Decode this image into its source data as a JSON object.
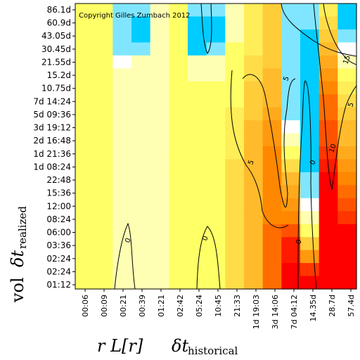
{
  "chart_data": {
    "type": "heatmap",
    "annotation": "Copyright Gilles Zumbach 2012",
    "x_tick_labels": [
      "00:06",
      "00:09",
      "00:21",
      "00:39",
      "01:21",
      "02:42",
      "05:24",
      "10:45",
      "21:33",
      "1d 19:03",
      "3d 14:06",
      "7d 04:12",
      "14.35d",
      "28.7d",
      "57.4d"
    ],
    "y_tick_labels": [
      "86.1d",
      "60.9d",
      "43.05d",
      "30.45d",
      "21.55d",
      "15.2d",
      "10.75d",
      "7d 14:24",
      "5d 09:36",
      "3d 19:12",
      "2d 16:48",
      "1d 21:36",
      "1d 08:24",
      "22:48",
      "15:36",
      "12:00",
      "08:24",
      "06:00",
      "03:36",
      "02:24",
      "02:24",
      "01:12"
    ],
    "x_label": {
      "main": "r L[r]",
      "symbol": "δt",
      "subscript": "historical"
    },
    "y_label": {
      "main": "vol",
      "symbol": "δt",
      "subscript": "realized"
    },
    "contour_labels": [
      "0",
      "0",
      "0",
      "0",
      "5",
      "5",
      "10",
      "15",
      "5"
    ],
    "colors": {
      "negative": "#00ccff",
      "zero": "#ffffff",
      "low": "#ffff66",
      "mid": "#ff8800",
      "high": "#ff0000"
    },
    "values": [
      [
        2,
        2,
        -1,
        -1,
        1,
        2,
        -1,
        -1,
        1,
        3,
        5,
        -1,
        -1,
        3,
        -2
      ],
      [
        2,
        2,
        -1,
        -2,
        1,
        2,
        -2,
        -2,
        1,
        3,
        5,
        -1,
        -1,
        4,
        -2
      ],
      [
        2,
        2,
        -1,
        -2,
        1,
        2,
        -2,
        -2,
        1,
        3,
        5,
        -1,
        -2,
        5,
        -1
      ],
      [
        2,
        2,
        -1,
        -1,
        1,
        2,
        -2,
        -1,
        2,
        3,
        5,
        -1,
        -2,
        6,
        0
      ],
      [
        2,
        2,
        0,
        1,
        1,
        2,
        1,
        1,
        2,
        4,
        5,
        -1,
        -2,
        7,
        1
      ],
      [
        2,
        2,
        1,
        1,
        1,
        2,
        1,
        1,
        2,
        4,
        6,
        -1,
        -2,
        8,
        2
      ],
      [
        2,
        2,
        1,
        1,
        1,
        2,
        2,
        2,
        2,
        5,
        6,
        -1,
        -2,
        9,
        3
      ],
      [
        2,
        2,
        1,
        1,
        1,
        2,
        2,
        2,
        2,
        5,
        6,
        -1,
        -2,
        10,
        4
      ],
      [
        2,
        2,
        1,
        1,
        1,
        2,
        2,
        2,
        3,
        5,
        7,
        -1,
        -2,
        10,
        5
      ],
      [
        2,
        2,
        1,
        1,
        1,
        2,
        2,
        2,
        3,
        6,
        8,
        0,
        -2,
        11,
        6
      ],
      [
        2,
        2,
        1,
        1,
        1,
        2,
        2,
        2,
        3,
        6,
        8,
        1,
        -2,
        11,
        6
      ],
      [
        2,
        2,
        1,
        1,
        1,
        2,
        2,
        2,
        3,
        6,
        9,
        2,
        -2,
        12,
        7
      ],
      [
        2,
        2,
        1,
        1,
        1,
        2,
        2,
        2,
        4,
        6,
        9,
        4,
        -2,
        13,
        8
      ],
      [
        2,
        2,
        1,
        1,
        1,
        2,
        2,
        2,
        4,
        6,
        9,
        6,
        -1,
        14,
        9
      ],
      [
        2,
        2,
        1,
        1,
        1,
        2,
        2,
        2,
        4,
        6,
        9,
        7,
        -1,
        14,
        10
      ],
      [
        2,
        2,
        1,
        1,
        1,
        2,
        2,
        2,
        4,
        6,
        9,
        8,
        0,
        15,
        11
      ],
      [
        2,
        2,
        1,
        1,
        1,
        2,
        2,
        2,
        4,
        6,
        9,
        9,
        1,
        15,
        12
      ],
      [
        2,
        2,
        1,
        1,
        1,
        2,
        2,
        2,
        4,
        6,
        10,
        11,
        2,
        16,
        14
      ],
      [
        2,
        2,
        1,
        1,
        1,
        2,
        2,
        2,
        4,
        6,
        10,
        13,
        5,
        17,
        16
      ],
      [
        2,
        2,
        1,
        1,
        1,
        2,
        2,
        2,
        4,
        6,
        10,
        13,
        8,
        18,
        17
      ],
      [
        2,
        2,
        1,
        1,
        1,
        2,
        2,
        2,
        4,
        6,
        10,
        14,
        12,
        19,
        18
      ],
      [
        2,
        2,
        1,
        1,
        1,
        2,
        2,
        2,
        4,
        6,
        10,
        14,
        14,
        20,
        20
      ]
    ]
  }
}
